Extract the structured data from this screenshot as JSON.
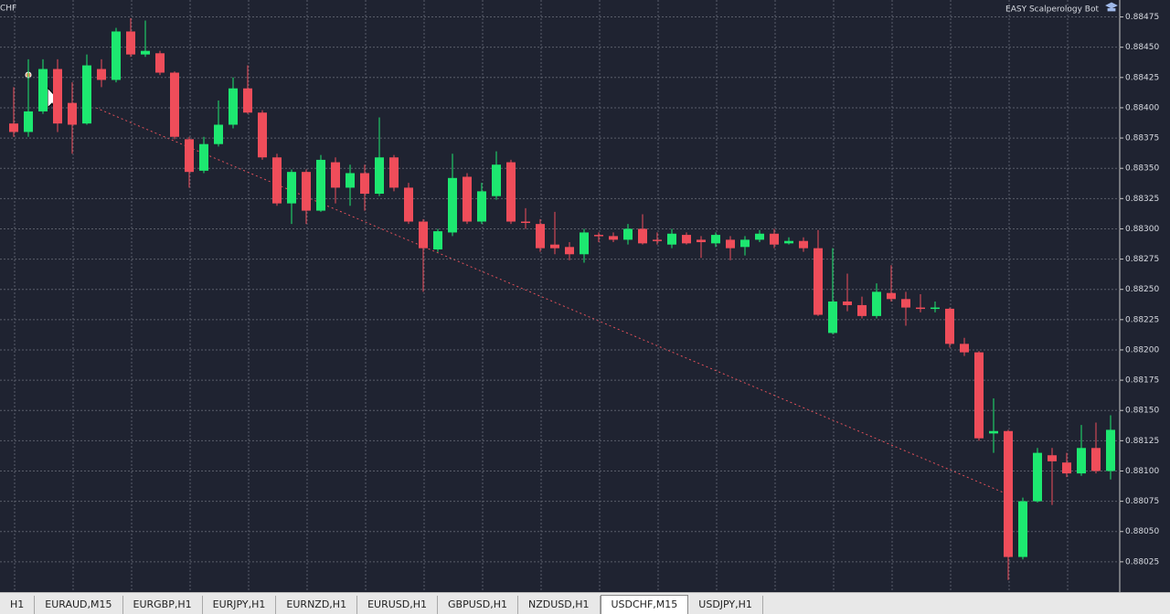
{
  "symbol_label": "CHF",
  "expert_label": "EASY Scalperology Bot",
  "tabs": [
    "H1",
    "EURAUD,M15",
    "EURGBP,H1",
    "EURJPY,H1",
    "EURNZD,H1",
    "EURUSD,H1",
    "GBPUSD,H1",
    "NZDUSD,H1",
    "USDCHF,M15",
    "USDJPY,H1"
  ],
  "active_tab": 8,
  "chart_data": {
    "type": "candlestick",
    "grid": true,
    "up_color": "#1de870",
    "down_color": "#ef4d5a",
    "ylim": [
      0.88,
      0.88489
    ],
    "yticks": [
      0.88475,
      {
        "value": 0.8845,
        "label": "0.88450"
      },
      0.88425,
      {
        "value": 0.884,
        "label": "0.88400"
      },
      0.88375,
      {
        "value": 0.8835,
        "label": "0.88350"
      },
      0.88325,
      {
        "value": 0.883,
        "label": "0.88300"
      },
      0.88275,
      {
        "value": 0.8825,
        "label": "0.88250"
      },
      0.88225,
      {
        "value": 0.882,
        "label": "0.88200"
      },
      0.88175,
      {
        "value": 0.8815,
        "label": "0.88150"
      },
      0.88125,
      {
        "value": 0.881,
        "label": "0.88100"
      },
      0.88075,
      {
        "value": 0.8805,
        "label": "0.88050"
      },
      0.88025
    ],
    "open": [
      0.88387,
      0.8838,
      0.88397,
      0.88432,
      0.88404,
      0.88387,
      0.88432,
      0.88423,
      0.88463,
      0.88444,
      0.88445,
      0.88429,
      0.88374,
      0.88348,
      0.8837,
      0.88386,
      0.88416,
      0.88396,
      0.88359,
      0.88321,
      0.88347,
      0.88315,
      0.88355,
      0.88334,
      0.88346,
      0.88329,
      0.88359,
      0.88334,
      0.88306,
      0.88283,
      0.88297,
      0.88343,
      0.88306,
      0.88327,
      0.88355,
      0.88306,
      0.88304,
      0.88287,
      0.88285,
      0.88279,
      0.88295,
      0.88294,
      0.88291,
      0.883,
      0.88291,
      0.88287,
      0.88295,
      0.88291,
      0.88288,
      0.88291,
      0.88285,
      0.88291,
      0.88296,
      0.88288,
      0.8829,
      0.88284,
      0.88214,
      0.8824,
      0.88237,
      0.88228,
      0.88247,
      0.88242,
      0.88235,
      0.88234,
      0.88234,
      0.88205,
      0.88198,
      0.88131,
      0.88133,
      0.88029,
      0.88075,
      0.88113,
      0.88107,
      0.88098,
      0.88119,
      0.881
    ],
    "high": [
      0.88417,
      0.8844,
      0.8844,
      0.8844,
      0.88421,
      0.88444,
      0.8844,
      0.88466,
      0.88474,
      0.88472,
      0.88447,
      0.8843,
      0.88376,
      0.88376,
      0.88406,
      0.88425,
      0.88435,
      0.88398,
      0.88362,
      0.88349,
      0.88349,
      0.88361,
      0.88359,
      0.88353,
      0.88353,
      0.88392,
      0.88361,
      0.88338,
      0.88308,
      0.883,
      0.88362,
      0.88346,
      0.88338,
      0.88364,
      0.88357,
      0.88317,
      0.88308,
      0.88314,
      0.88289,
      0.883,
      0.88297,
      0.88297,
      0.88304,
      0.88312,
      0.88297,
      0.883,
      0.88297,
      0.88294,
      0.88297,
      0.88294,
      0.88294,
      0.88299,
      0.883,
      0.88293,
      0.88293,
      0.88299,
      0.88284,
      0.88263,
      0.88244,
      0.88255,
      0.8827,
      0.88248,
      0.88246,
      0.8824,
      0.88235,
      0.8821,
      0.88199,
      0.8816,
      0.88134,
      0.88078,
      0.88119,
      0.88119,
      0.88115,
      0.88138,
      0.8814,
      0.88146
    ],
    "low": [
      0.88376,
      0.88376,
      0.88395,
      0.8838,
      0.88362,
      0.88386,
      0.88417,
      0.88421,
      0.88442,
      0.88442,
      0.88427,
      0.88374,
      0.88334,
      0.88346,
      0.88368,
      0.88383,
      0.88395,
      0.88357,
      0.88319,
      0.88304,
      0.88304,
      0.88314,
      0.88321,
      0.88319,
      0.88315,
      0.88327,
      0.88331,
      0.88304,
      0.88248,
      0.88281,
      0.88294,
      0.88304,
      0.88304,
      0.88324,
      0.88304,
      0.883,
      0.88281,
      0.88279,
      0.88274,
      0.88272,
      0.88289,
      0.88289,
      0.88287,
      0.88287,
      0.88287,
      0.88284,
      0.88287,
      0.88276,
      0.88285,
      0.88274,
      0.88278,
      0.88289,
      0.88284,
      0.88287,
      0.88281,
      0.88228,
      0.88213,
      0.88232,
      0.88226,
      0.88226,
      0.8824,
      0.8822,
      0.88231,
      0.88231,
      0.88202,
      0.88195,
      0.88125,
      0.88115,
      0.8801,
      0.88027,
      0.88074,
      0.88072,
      0.88095,
      0.88096,
      0.88098,
      0.88093
    ],
    "close": [
      0.8838,
      0.88397,
      0.88432,
      0.88387,
      0.88386,
      0.88435,
      0.88423,
      0.88463,
      0.88444,
      0.88447,
      0.88429,
      0.88376,
      0.88347,
      0.8837,
      0.88386,
      0.88416,
      0.88396,
      0.88359,
      0.88321,
      0.88347,
      0.88315,
      0.88357,
      0.88334,
      0.88346,
      0.88329,
      0.88359,
      0.88334,
      0.88306,
      0.88284,
      0.88298,
      0.88342,
      0.88306,
      0.88331,
      0.88353,
      0.88306,
      0.88305,
      0.88284,
      0.88284,
      0.88279,
      0.88297,
      0.88294,
      0.88291,
      0.883,
      0.88288,
      0.8829,
      0.88296,
      0.88288,
      0.88289,
      0.88295,
      0.88284,
      0.88291,
      0.88296,
      0.88287,
      0.8829,
      0.88284,
      0.88229,
      0.8824,
      0.88237,
      0.88228,
      0.88248,
      0.88242,
      0.88235,
      0.88234,
      0.88235,
      0.88205,
      0.88198,
      0.88127,
      0.88133,
      0.88029,
      0.88075,
      0.88115,
      0.88108,
      0.88098,
      0.88119,
      0.881,
      0.88134
    ]
  }
}
